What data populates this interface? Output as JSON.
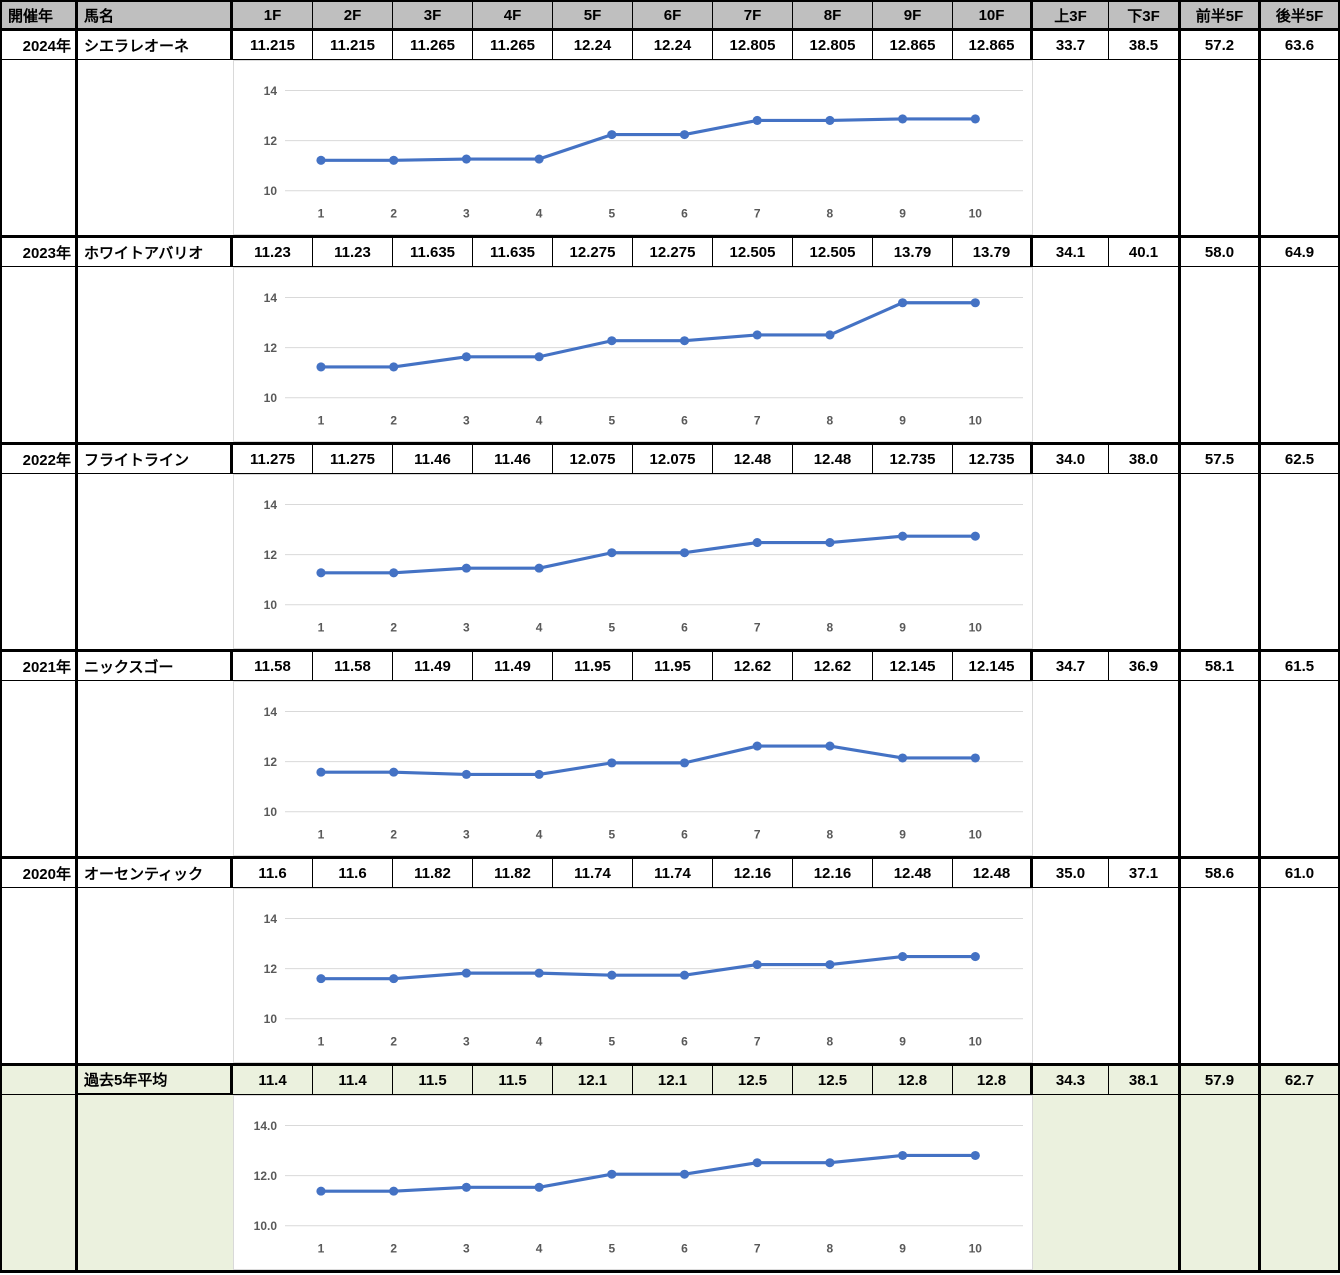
{
  "colors": {
    "line": "#4472C4",
    "header_bg": "#BFBFBF",
    "highlight_bg": "#EBF1DE",
    "chart_grid": "#D9D9D9",
    "chart_text": "#595959",
    "border": "#000000"
  },
  "table": {
    "headers": {
      "year": "開催年",
      "horse": "馬名",
      "laps": [
        "1F",
        "2F",
        "3F",
        "4F",
        "5F",
        "6F",
        "7F",
        "8F",
        "9F",
        "10F"
      ],
      "extras": [
        "上3F",
        "下3F",
        "前半5F",
        "後半5F"
      ]
    },
    "rows": [
      {
        "year": "2024年",
        "horse": "シエラレオーネ",
        "laps": [
          "11.215",
          "11.215",
          "11.265",
          "11.265",
          "12.24",
          "12.24",
          "12.805",
          "12.805",
          "12.865",
          "12.865"
        ],
        "extras": [
          "33.7",
          "38.5",
          "57.2",
          "63.6"
        ],
        "highlight": false
      },
      {
        "year": "2023年",
        "horse": "ホワイトアバリオ",
        "laps": [
          "11.23",
          "11.23",
          "11.635",
          "11.635",
          "12.275",
          "12.275",
          "12.505",
          "12.505",
          "13.79",
          "13.79"
        ],
        "extras": [
          "34.1",
          "40.1",
          "58.0",
          "64.9"
        ],
        "highlight": false
      },
      {
        "year": "2022年",
        "horse": "フライトライン",
        "laps": [
          "11.275",
          "11.275",
          "11.46",
          "11.46",
          "12.075",
          "12.075",
          "12.48",
          "12.48",
          "12.735",
          "12.735"
        ],
        "extras": [
          "34.0",
          "38.0",
          "57.5",
          "62.5"
        ],
        "highlight": false
      },
      {
        "year": "2021年",
        "horse": "ニックスゴー",
        "laps": [
          "11.58",
          "11.58",
          "11.49",
          "11.49",
          "11.95",
          "11.95",
          "12.62",
          "12.62",
          "12.145",
          "12.145"
        ],
        "extras": [
          "34.7",
          "36.9",
          "58.1",
          "61.5"
        ],
        "highlight": false
      },
      {
        "year": "2020年",
        "horse": "オーセンティック",
        "laps": [
          "11.6",
          "11.6",
          "11.82",
          "11.82",
          "11.74",
          "11.74",
          "12.16",
          "12.16",
          "12.48",
          "12.48"
        ],
        "extras": [
          "35.0",
          "37.1",
          "58.6",
          "61.0"
        ],
        "highlight": false
      },
      {
        "year": "",
        "horse": "過去5年平均",
        "laps": [
          "11.4",
          "11.4",
          "11.5",
          "11.5",
          "12.1",
          "12.1",
          "12.5",
          "12.5",
          "12.8",
          "12.8"
        ],
        "extras": [
          "34.3",
          "38.1",
          "57.9",
          "62.7"
        ],
        "highlight": true
      }
    ]
  },
  "chart_data": [
    {
      "type": "line",
      "label": "2024年 シエラレオーネ ラップ",
      "categories": [
        1,
        2,
        3,
        4,
        5,
        6,
        7,
        8,
        9,
        10
      ],
      "values": [
        11.215,
        11.215,
        11.265,
        11.265,
        12.24,
        12.24,
        12.805,
        12.805,
        12.865,
        12.865
      ],
      "ytick_labels": [
        "14",
        "12",
        "10"
      ],
      "yticks": [
        14,
        12,
        10
      ],
      "ylim": [
        10,
        14
      ],
      "grid": true,
      "legend": false
    },
    {
      "type": "line",
      "label": "2023年 ホワイトアバリオ ラップ",
      "categories": [
        1,
        2,
        3,
        4,
        5,
        6,
        7,
        8,
        9,
        10
      ],
      "values": [
        11.23,
        11.23,
        11.635,
        11.635,
        12.275,
        12.275,
        12.505,
        12.505,
        13.79,
        13.79
      ],
      "ytick_labels": [
        "14",
        "12",
        "10"
      ],
      "yticks": [
        14,
        12,
        10
      ],
      "ylim": [
        10,
        14
      ],
      "grid": true,
      "legend": false
    },
    {
      "type": "line",
      "label": "2022年 フライトライン ラップ",
      "categories": [
        1,
        2,
        3,
        4,
        5,
        6,
        7,
        8,
        9,
        10
      ],
      "values": [
        11.275,
        11.275,
        11.46,
        11.46,
        12.075,
        12.075,
        12.48,
        12.48,
        12.735,
        12.735
      ],
      "ytick_labels": [
        "14",
        "12",
        "10"
      ],
      "yticks": [
        14,
        12,
        10
      ],
      "ylim": [
        10,
        14
      ],
      "grid": true,
      "legend": false
    },
    {
      "type": "line",
      "label": "2021年 ニックスゴー ラップ",
      "categories": [
        1,
        2,
        3,
        4,
        5,
        6,
        7,
        8,
        9,
        10
      ],
      "values": [
        11.58,
        11.58,
        11.49,
        11.49,
        11.95,
        11.95,
        12.62,
        12.62,
        12.145,
        12.145
      ],
      "ytick_labels": [
        "14",
        "12",
        "10"
      ],
      "yticks": [
        14,
        12,
        10
      ],
      "ylim": [
        10,
        14
      ],
      "grid": true,
      "legend": false
    },
    {
      "type": "line",
      "label": "2020年 オーセンティック ラップ",
      "categories": [
        1,
        2,
        3,
        4,
        5,
        6,
        7,
        8,
        9,
        10
      ],
      "values": [
        11.6,
        11.6,
        11.82,
        11.82,
        11.74,
        11.74,
        12.16,
        12.16,
        12.48,
        12.48
      ],
      "ytick_labels": [
        "14",
        "12",
        "10"
      ],
      "yticks": [
        14,
        12,
        10
      ],
      "ylim": [
        10,
        14
      ],
      "grid": true,
      "legend": false
    },
    {
      "type": "line",
      "label": "過去5年平均 ラップ",
      "categories": [
        1,
        2,
        3,
        4,
        5,
        6,
        7,
        8,
        9,
        10
      ],
      "values": [
        11.38,
        11.38,
        11.534,
        11.534,
        12.056,
        12.056,
        12.514,
        12.514,
        12.803,
        12.803
      ],
      "ytick_labels": [
        "14.0",
        "12.0",
        "10.0"
      ],
      "yticks": [
        14,
        12,
        10
      ],
      "ylim": [
        10,
        14
      ],
      "grid": true,
      "legend": false
    }
  ]
}
